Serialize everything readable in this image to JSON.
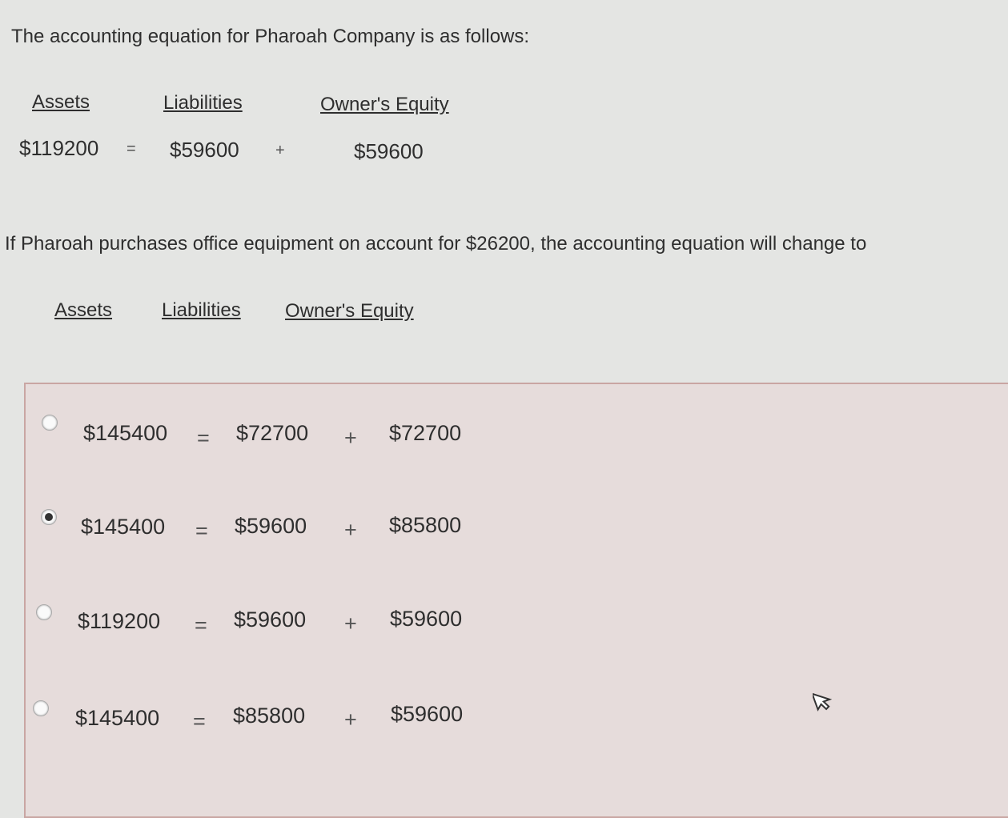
{
  "question": {
    "intro": "The accounting equation for Pharoah Company is as follows:",
    "headers": {
      "assets": "Assets",
      "liabilities": "Liabilities",
      "equity": "Owner's Equity"
    },
    "equation": {
      "assets": "$119200",
      "equals": "=",
      "liabilities": "$59600",
      "plus": "+",
      "equity": "$59600"
    },
    "prompt": "If Pharoah purchases office equipment on account for $26200, the accounting equation will change to"
  },
  "answers": {
    "headers": {
      "assets": "Assets",
      "liabilities": "Liabilities",
      "equity": "Owner's Equity"
    },
    "options": [
      {
        "assets": "$145400",
        "equals": "=",
        "liabilities": "$72700",
        "plus": "+",
        "equity": "$72700",
        "selected": false
      },
      {
        "assets": "$145400",
        "equals": "=",
        "liabilities": "$59600",
        "plus": "+",
        "equity": "$85800",
        "selected": true
      },
      {
        "assets": "$119200",
        "equals": "=",
        "liabilities": "$59600",
        "plus": "+",
        "equity": "$59600",
        "selected": false
      },
      {
        "assets": "$145400",
        "equals": "=",
        "liabilities": "$85800",
        "plus": "+",
        "equity": "$59600",
        "selected": false
      }
    ]
  },
  "icons": {
    "cursor": "mouse-pointer-icon"
  }
}
